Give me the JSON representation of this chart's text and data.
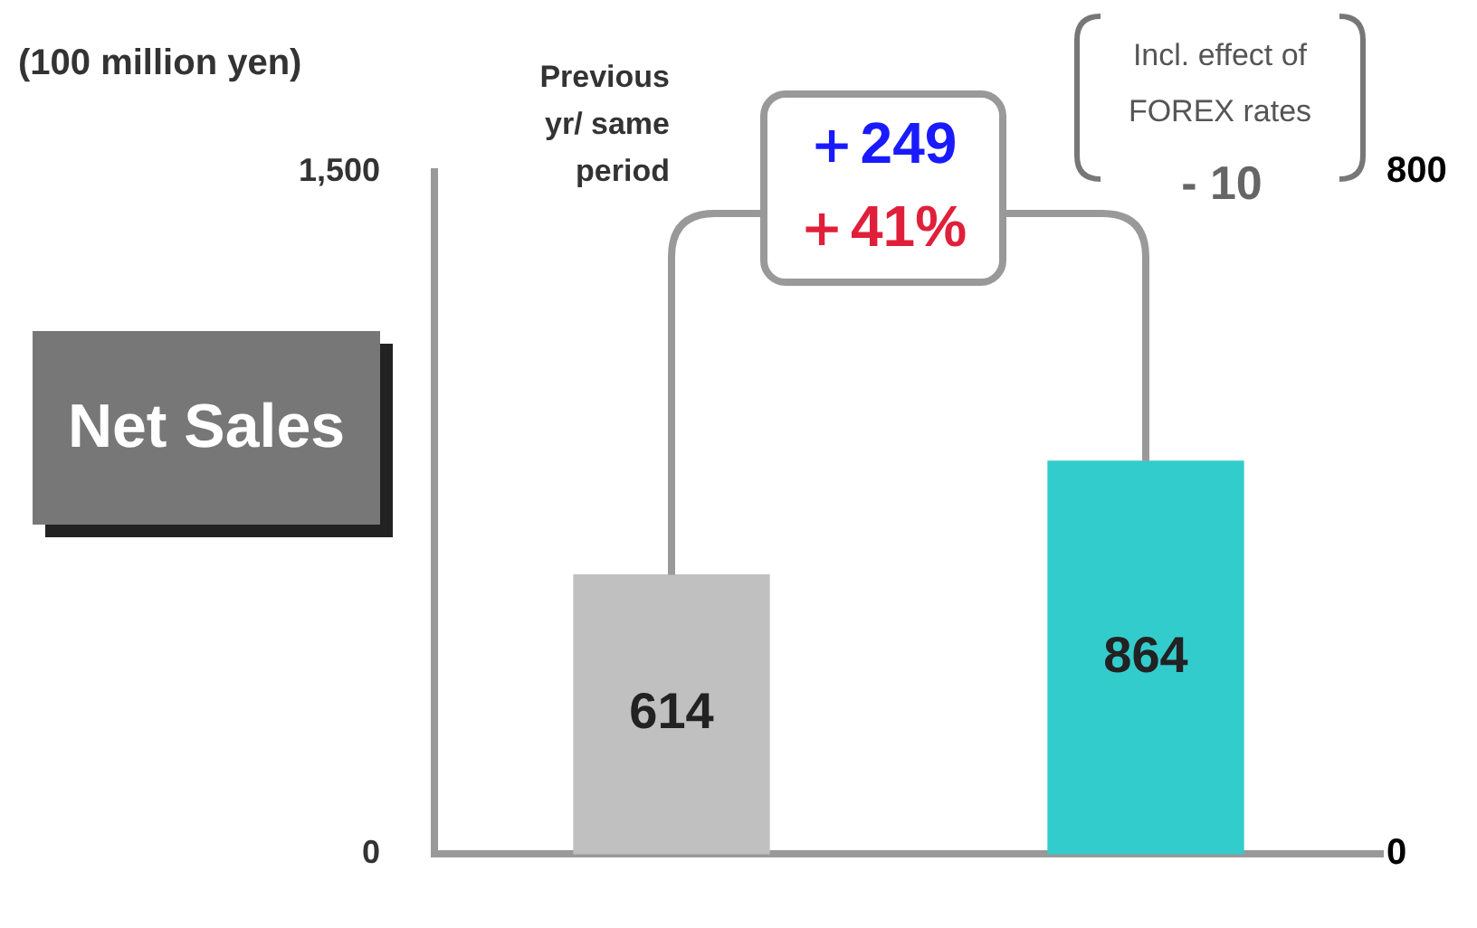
{
  "chart_data": {
    "type": "bar",
    "ylabel": "(100 million yen)",
    "categories": [
      null,
      null
    ],
    "values": [
      614,
      864
    ],
    "colors": [
      "#c0c0c0",
      "#33cccc"
    ],
    "ylim": [
      0,
      1500
    ],
    "yticks": [
      0,
      {
        "value": 1500,
        "label": "1,500"
      }
    ],
    "y2lim": [
      0,
      800
    ],
    "y2ticks": [
      0,
      800
    ],
    "grid": false,
    "legend": false,
    "data_labels": true,
    "annotations": [
      "Previous yr/ same period",
      "＋249",
      "＋41%",
      "Incl. effect of FOREX rates",
      "- 10",
      "Net Sales"
    ]
  }
}
